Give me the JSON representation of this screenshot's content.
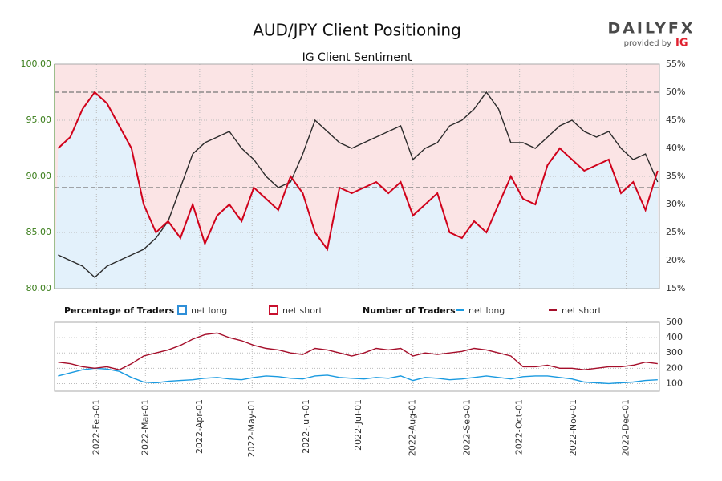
{
  "logo": {
    "brand": "DAILYFX",
    "provider": "provided by",
    "provider_brand": "IG"
  },
  "chart_data": [
    {
      "type": "line",
      "title": "AUD/JPY Client Positioning",
      "subtitle": "IG Client Sentiment",
      "legend_title": "Percentage of Traders",
      "areas": [
        {
          "name": "net long",
          "color": "#2f8fd8",
          "fill": "#e3f1fb"
        },
        {
          "name": "net short",
          "color": "#c8102e",
          "fill": "#fbe4e5"
        }
      ],
      "x": [
        "2022-01-10",
        "2022-01-17",
        "2022-01-24",
        "2022-01-31",
        "2022-02-07",
        "2022-02-14",
        "2022-02-21",
        "2022-02-28",
        "2022-03-07",
        "2022-03-14",
        "2022-03-21",
        "2022-03-28",
        "2022-04-04",
        "2022-04-11",
        "2022-04-18",
        "2022-04-25",
        "2022-05-02",
        "2022-05-09",
        "2022-05-16",
        "2022-05-23",
        "2022-05-30",
        "2022-06-06",
        "2022-06-13",
        "2022-06-20",
        "2022-06-27",
        "2022-07-04",
        "2022-07-11",
        "2022-07-18",
        "2022-07-25",
        "2022-08-01",
        "2022-08-08",
        "2022-08-15",
        "2022-08-22",
        "2022-08-29",
        "2022-09-05",
        "2022-09-12",
        "2022-09-19",
        "2022-09-26",
        "2022-10-03",
        "2022-10-10",
        "2022-10-17",
        "2022-10-24",
        "2022-10-31",
        "2022-11-07",
        "2022-11-14",
        "2022-11-21",
        "2022-11-28",
        "2022-12-05",
        "2022-12-12",
        "2022-12-19"
      ],
      "xlim": [
        "2022-01-08",
        "2022-12-20"
      ],
      "ylim": [
        80,
        100
      ],
      "yticks": [
        {
          "value": 80,
          "label": "80.00"
        },
        {
          "value": 85,
          "label": "85.00"
        },
        {
          "value": 90,
          "label": "90.00"
        },
        {
          "value": 95,
          "label": "95.00"
        },
        {
          "value": 100,
          "label": "100.00"
        }
      ],
      "y2lim": [
        15,
        55
      ],
      "y2ticks": [
        {
          "value": 15,
          "label": "15%"
        },
        {
          "value": 20,
          "label": "20%"
        },
        {
          "value": 25,
          "label": "25%"
        },
        {
          "value": 30,
          "label": "30%"
        },
        {
          "value": 35,
          "label": "35%"
        },
        {
          "value": 40,
          "label": "40%"
        },
        {
          "value": 45,
          "label": "45%"
        },
        {
          "value": 50,
          "label": "50%"
        },
        {
          "value": 55,
          "label": "55%"
        }
      ],
      "y2_reference_lines": [
        50,
        33
      ],
      "series": [
        {
          "color": "#2b2b2b",
          "values": [
            83,
            82.5,
            82,
            81,
            82,
            82.5,
            83,
            83.5,
            84.5,
            86,
            89,
            92,
            93,
            93.5,
            94,
            92.5,
            91.5,
            90,
            89,
            89.5,
            92,
            95,
            94,
            93,
            92.5,
            93,
            93.5,
            94,
            94.5,
            91.5,
            92.5,
            93,
            94.5,
            95,
            96,
            97.5,
            96,
            93,
            93,
            92.5,
            93.5,
            94.5,
            95,
            94,
            93.5,
            94,
            92.5,
            91.5,
            92,
            89.5
          ]
        },
        {
          "color": "#d0021b",
          "axis": "y2",
          "values": [
            40,
            42,
            47,
            50,
            48,
            44,
            40,
            30,
            25,
            27,
            24,
            30,
            23,
            28,
            30,
            27,
            33,
            31,
            29,
            35,
            32,
            25,
            22,
            33,
            32,
            33,
            34,
            32,
            34,
            28,
            30,
            32,
            25,
            24,
            27,
            25,
            30,
            35,
            31,
            30,
            37,
            40,
            38,
            36,
            37,
            38,
            32,
            34,
            29,
            36
          ]
        }
      ]
    },
    {
      "type": "line",
      "legend_title": "Number of Traders",
      "x": [
        "2022-01-10",
        "2022-01-17",
        "2022-01-24",
        "2022-01-31",
        "2022-02-07",
        "2022-02-14",
        "2022-02-21",
        "2022-02-28",
        "2022-03-07",
        "2022-03-14",
        "2022-03-21",
        "2022-03-28",
        "2022-04-04",
        "2022-04-11",
        "2022-04-18",
        "2022-04-25",
        "2022-05-02",
        "2022-05-09",
        "2022-05-16",
        "2022-05-23",
        "2022-05-30",
        "2022-06-06",
        "2022-06-13",
        "2022-06-20",
        "2022-06-27",
        "2022-07-04",
        "2022-07-11",
        "2022-07-18",
        "2022-07-25",
        "2022-08-01",
        "2022-08-08",
        "2022-08-15",
        "2022-08-22",
        "2022-08-29",
        "2022-09-05",
        "2022-09-12",
        "2022-09-19",
        "2022-09-26",
        "2022-10-03",
        "2022-10-10",
        "2022-10-17",
        "2022-10-24",
        "2022-10-31",
        "2022-11-07",
        "2022-11-14",
        "2022-11-21",
        "2022-11-28",
        "2022-12-05",
        "2022-12-12",
        "2022-12-19"
      ],
      "xlim": [
        "2022-01-08",
        "2022-12-20"
      ],
      "xticks": [
        {
          "value": "2022-02-01",
          "label": "2022-Feb-01"
        },
        {
          "value": "2022-03-01",
          "label": "2022-Mar-01"
        },
        {
          "value": "2022-04-01",
          "label": "2022-Apr-01"
        },
        {
          "value": "2022-05-01",
          "label": "2022-May-01"
        },
        {
          "value": "2022-06-01",
          "label": "2022-Jun-01"
        },
        {
          "value": "2022-07-01",
          "label": "2022-Jul-01"
        },
        {
          "value": "2022-08-01",
          "label": "2022-Aug-01"
        },
        {
          "value": "2022-09-01",
          "label": "2022-Sep-01"
        },
        {
          "value": "2022-10-01",
          "label": "2022-Oct-01"
        },
        {
          "value": "2022-11-01",
          "label": "2022-Nov-01"
        },
        {
          "value": "2022-12-01",
          "label": "2022-Dec-01"
        }
      ],
      "ylim": [
        50,
        500
      ],
      "yticks": [
        100,
        200,
        300,
        400,
        500
      ],
      "series": [
        {
          "name": "net long",
          "color": "#1a9ae0",
          "values": [
            150,
            170,
            190,
            200,
            195,
            180,
            140,
            110,
            105,
            115,
            120,
            125,
            135,
            140,
            130,
            125,
            140,
            150,
            145,
            135,
            130,
            150,
            155,
            140,
            135,
            130,
            140,
            135,
            150,
            120,
            140,
            135,
            125,
            130,
            140,
            150,
            140,
            130,
            145,
            150,
            150,
            140,
            130,
            110,
            105,
            100,
            105,
            110,
            120,
            125
          ]
        },
        {
          "name": "net short",
          "color": "#a50e2a",
          "values": [
            240,
            230,
            210,
            200,
            210,
            190,
            230,
            280,
            300,
            320,
            350,
            390,
            420,
            430,
            400,
            380,
            350,
            330,
            320,
            300,
            290,
            330,
            320,
            300,
            280,
            300,
            330,
            320,
            330,
            280,
            300,
            290,
            300,
            310,
            330,
            320,
            300,
            280,
            210,
            210,
            220,
            200,
            200,
            190,
            200,
            210,
            210,
            220,
            240,
            230
          ]
        }
      ]
    }
  ]
}
